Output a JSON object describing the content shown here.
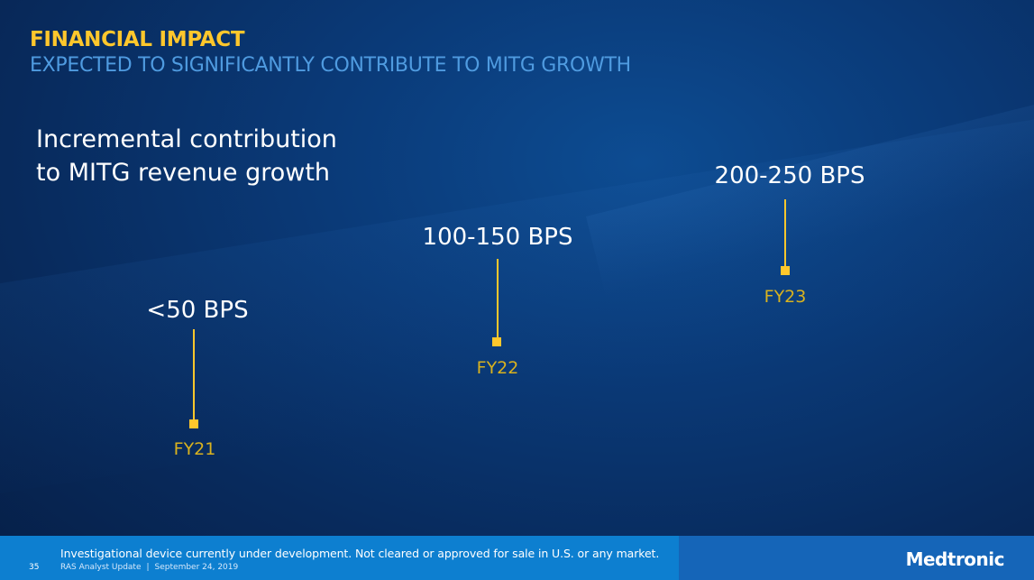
{
  "header": {
    "title": "FINANCIAL IMPACT",
    "subtitle": "EXPECTED TO SIGNIFICANTLY CONTRIBUTE TO MITG GROWTH"
  },
  "body": {
    "heading_line1": "Incremental contribution",
    "heading_line2": "to MITG revenue growth"
  },
  "milestones": [
    {
      "label": "<50 BPS",
      "year": "FY21"
    },
    {
      "label": "100-150 BPS",
      "year": "FY22"
    },
    {
      "label": "200-250 BPS",
      "year": "FY23"
    }
  ],
  "footer": {
    "page_number": "35",
    "disclaimer": "Investigational device currently under development. Not cleared or approved for sale in U.S. or any market.",
    "event": "RAS Analyst Update",
    "separator": "|",
    "date": "September 24, 2019",
    "brand": "Medtronic"
  },
  "colors": {
    "accent": "#ffc72c",
    "subtitle": "#4f9be0",
    "background": "#0a3a78",
    "footer": "#0d7fd0"
  }
}
